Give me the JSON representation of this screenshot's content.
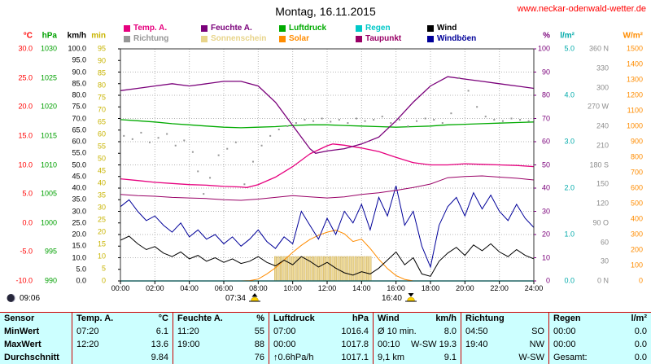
{
  "page": {
    "title": "Montag, 16.11.2015",
    "website": "www.neckar-odenwald-wetter.de"
  },
  "legend": {
    "row1": [
      {
        "label": "Temp. A.",
        "color": "#E6007E"
      },
      {
        "label": "Feuchte A.",
        "color": "#7A007A"
      },
      {
        "label": "Luftdruck",
        "color": "#00AA00"
      },
      {
        "label": "Regen",
        "color": "#00C8C8"
      },
      {
        "label": "Wind",
        "color": "#000000"
      }
    ],
    "row2": [
      {
        "label": "Richtung",
        "color": "#969696"
      },
      {
        "label": "Sonnenschein",
        "color": "#E8D48A"
      },
      {
        "label": "Solar",
        "color": "#FF8C00"
      },
      {
        "label": "Taupunkt",
        "color": "#990066"
      },
      {
        "label": "Windböen",
        "color": "#000099"
      }
    ]
  },
  "axes": {
    "left": [
      {
        "id": "temp-c",
        "unit": "°C",
        "color": "#FF0000",
        "labels": [
          "30.0",
          "25.0",
          "20.0",
          "15.0",
          "10.0",
          "5.0",
          "0.0",
          "-5.0",
          "-10.0"
        ]
      },
      {
        "id": "pressure-hpa",
        "unit": "hPa",
        "color": "#00A000",
        "labels": [
          "1030",
          "1025",
          "1020",
          "1015",
          "1010",
          "1005",
          "1000",
          "995",
          "990"
        ]
      },
      {
        "id": "wind-kmh",
        "unit": "km/h",
        "color": "#000000",
        "labels": [
          "100.0",
          "95.0",
          "90.0",
          "85.0",
          "80.0",
          "75.0",
          "70.0",
          "65.0",
          "60.0",
          "55.0",
          "50.0",
          "45.0",
          "40.0",
          "35.0",
          "30.0",
          "25.0",
          "20.0",
          "15.0",
          "10.0",
          "5.0",
          "0.0"
        ]
      },
      {
        "id": "sunshine-min",
        "unit": "min",
        "color": "#C8B400",
        "labels": [
          "95",
          "90",
          "85",
          "80",
          "75",
          "70",
          "65",
          "60",
          "55",
          "50",
          "45",
          "40",
          "35",
          "30",
          "25",
          "20",
          "15",
          "10",
          "5",
          "0"
        ]
      }
    ],
    "right": [
      {
        "id": "humidity-pct",
        "unit": "%",
        "color": "#7A007A",
        "labels": [
          "100",
          "90",
          "80",
          "70",
          "60",
          "50",
          "40",
          "30",
          "20",
          "10",
          "0"
        ]
      },
      {
        "id": "rain-lm2",
        "unit": "l/m²",
        "color": "#00AAAA",
        "labels": [
          "5.0",
          "4.0",
          "3.0",
          "2.0",
          "1.0",
          "0.0"
        ]
      },
      {
        "id": "direction-deg",
        "unit": "",
        "color": "#8C8C8C",
        "labels": [
          "360 N",
          "330",
          "300",
          "270 W",
          "240",
          "210",
          "180 S",
          "150",
          "120",
          "90 O",
          "60",
          "30",
          "0 N"
        ]
      },
      {
        "id": "solar-wm2",
        "unit": "W/m²",
        "color": "#FF8C00",
        "labels": [
          "1500",
          "1400",
          "1300",
          "1200",
          "1100",
          "1000",
          "900",
          "800",
          "700",
          "600",
          "500",
          "400",
          "300",
          "200",
          "100",
          "0"
        ]
      }
    ]
  },
  "x_axis": [
    "00:00",
    "02:00",
    "04:00",
    "06:00",
    "08:00",
    "10:00",
    "12:00",
    "14:00",
    "16:00",
    "18:00",
    "20:00",
    "22:00",
    "24:00"
  ],
  "markers": {
    "moonrise": "09:06",
    "sunrise": "07:34",
    "sunset": "16:40"
  },
  "chart_data": {
    "type": "line",
    "title": "Montag, 16.11.2015",
    "x_unit": "hour_of_day",
    "x_range": [
      0,
      24
    ],
    "axes_ranges": {
      "c": [
        -10,
        30
      ],
      "hpa": [
        990,
        1030
      ],
      "pct": [
        0,
        100
      ],
      "kmh": [
        0,
        100
      ],
      "wm2": [
        0,
        1500
      ],
      "mins": [
        0,
        95
      ],
      "deg": [
        0,
        360
      ],
      "lm2": [
        0,
        5
      ]
    },
    "series": [
      {
        "id": "regen",
        "name": "Regen",
        "unit": "l/m²",
        "axis": "lm2",
        "color": "#00C8C8",
        "width": 1.4,
        "x": [
          0,
          24
        ],
        "values": [
          0,
          0
        ]
      },
      {
        "id": "solar",
        "name": "Solar",
        "unit": "W/m²",
        "axis": "wm2",
        "color": "#FF8C00",
        "width": 1,
        "x_start": 0,
        "x_step": 0.5,
        "values": [
          0,
          0,
          0,
          0,
          0,
          0,
          0,
          0,
          0,
          0,
          0,
          0,
          0,
          0,
          0,
          2,
          12,
          45,
          85,
          135,
          185,
          230,
          268,
          295,
          315,
          328,
          305,
          255,
          270,
          210,
          140,
          80,
          35,
          10,
          0,
          0,
          0,
          0,
          0,
          0,
          0,
          0,
          0,
          0,
          0,
          0,
          0,
          0,
          0
        ]
      },
      {
        "id": "windboeen",
        "name": "Windböen",
        "unit": "km/h",
        "axis": "kmh",
        "color": "#000099",
        "width": 1,
        "x_start": 0,
        "x_step": 0.5,
        "values": [
          32,
          35,
          30,
          26,
          28,
          24,
          21,
          25,
          19,
          22,
          18,
          20,
          16,
          19,
          15,
          18,
          22,
          17,
          14,
          19,
          16,
          30,
          24,
          18,
          27,
          20,
          30,
          25,
          33,
          22,
          36,
          28,
          41,
          24,
          30,
          15,
          6,
          24,
          32,
          36,
          28,
          38,
          31,
          37,
          30,
          26,
          33,
          27,
          23
        ]
      },
      {
        "id": "wind",
        "name": "Wind",
        "unit": "km/h",
        "axis": "kmh",
        "color": "#000000",
        "width": 1,
        "x_start": 0,
        "x_step": 0.5,
        "values": [
          17.5,
          19.3,
          16,
          13.5,
          14.8,
          12,
          10.5,
          12.5,
          9.5,
          11,
          8.5,
          10,
          8,
          9.5,
          7.5,
          8.5,
          10.5,
          8,
          6.5,
          9,
          7,
          10.5,
          8.5,
          6,
          8,
          5.5,
          3.5,
          2.5,
          4,
          3,
          5.5,
          9,
          12.5,
          7,
          10,
          3,
          2,
          8.5,
          12,
          14.5,
          11,
          15.5,
          13,
          16,
          12.5,
          10.5,
          13.5,
          11,
          9.5
        ]
      },
      {
        "id": "taupunkt",
        "name": "Taupunkt",
        "unit": "°C",
        "axis": "c",
        "color": "#990066",
        "width": 1,
        "x_start": 0,
        "x_step": 1,
        "values": [
          4.9,
          4.7,
          4.6,
          4.4,
          4.3,
          4.2,
          4.0,
          3.9,
          4.1,
          4.4,
          4.7,
          4.5,
          4.3,
          4.5,
          4.9,
          5.2,
          5.6,
          6.1,
          6.7,
          7.8,
          8.0,
          8.1,
          7.9,
          7.7,
          7.4
        ]
      },
      {
        "id": "temp-a",
        "name": "Temp. A.",
        "unit": "°C",
        "axis": "c",
        "color": "#E6007E",
        "width": 1.3,
        "x": [
          0,
          1,
          2,
          3,
          4,
          5,
          6,
          7,
          7.33,
          8,
          9,
          10,
          11,
          12,
          12.33,
          13,
          14,
          15,
          16,
          17,
          18,
          19,
          20,
          21,
          22,
          23,
          24
        ],
        "values": [
          7.6,
          7.3,
          7.0,
          6.8,
          6.6,
          6.5,
          6.3,
          6.2,
          6.1,
          6.6,
          7.9,
          9.7,
          11.9,
          13.3,
          13.6,
          13.4,
          12.9,
          12.3,
          11.3,
          10.4,
          10.0,
          10.0,
          10.2,
          10.1,
          10.0,
          9.9,
          9.7
        ]
      },
      {
        "id": "luftdruck",
        "name": "Luftdruck",
        "unit": "hPa",
        "axis": "hpa",
        "color": "#00AA00",
        "width": 1.3,
        "x_start": 0,
        "x_step": 1,
        "values": [
          1017.8,
          1017.6,
          1017.4,
          1017.1,
          1016.9,
          1016.7,
          1016.5,
          1016.4,
          1016.5,
          1016.6,
          1016.8,
          1016.9,
          1016.9,
          1016.8,
          1016.7,
          1016.6,
          1016.5,
          1016.6,
          1016.7,
          1016.9,
          1017.0,
          1017.1,
          1017.2,
          1017.3,
          1017.4
        ]
      },
      {
        "id": "feuchte-a",
        "name": "Feuchte A.",
        "unit": "%",
        "axis": "pct",
        "color": "#7A007A",
        "width": 1.3,
        "x": [
          0,
          1,
          2,
          3,
          4,
          5,
          6,
          7,
          8,
          9,
          10,
          11,
          11.33,
          12,
          13,
          14,
          15,
          16,
          17,
          18,
          19,
          20,
          21,
          22,
          23,
          24
        ],
        "values": [
          82,
          83,
          84,
          85,
          84,
          85,
          86,
          86,
          84,
          77,
          67,
          57,
          55,
          56,
          57,
          59,
          62,
          69,
          77,
          84,
          88,
          87,
          86,
          85,
          84,
          83
        ]
      }
    ],
    "scatter": {
      "id": "richtung",
      "name": "Richtung",
      "unit": "Grad",
      "axis": "deg",
      "color": "#969696",
      "points": [
        [
          0.2,
          225
        ],
        [
          0.7,
          220
        ],
        [
          1.2,
          230
        ],
        [
          1.7,
          215
        ],
        [
          2.2,
          222
        ],
        [
          2.7,
          228
        ],
        [
          3.2,
          210
        ],
        [
          3.7,
          218
        ],
        [
          4.2,
          200
        ],
        [
          4.5,
          170
        ],
        [
          4.83,
          135
        ],
        [
          5.2,
          160
        ],
        [
          5.7,
          195
        ],
        [
          6.2,
          205
        ],
        [
          6.7,
          215
        ],
        [
          7.2,
          150
        ],
        [
          7.7,
          185
        ],
        [
          8.2,
          210
        ],
        [
          8.7,
          225
        ],
        [
          9.2,
          235
        ],
        [
          9.7,
          240
        ],
        [
          10.2,
          245
        ],
        [
          10.7,
          250
        ],
        [
          11.2,
          248
        ],
        [
          11.7,
          252
        ],
        [
          12.2,
          247
        ],
        [
          12.7,
          250
        ],
        [
          13.2,
          245
        ],
        [
          13.7,
          252
        ],
        [
          14.2,
          248
        ],
        [
          14.7,
          250
        ],
        [
          15.2,
          255
        ],
        [
          15.7,
          245
        ],
        [
          16.2,
          250
        ],
        [
          16.7,
          240
        ],
        [
          17.2,
          248
        ],
        [
          17.7,
          252
        ],
        [
          18.2,
          250
        ],
        [
          18.7,
          245
        ],
        [
          19.2,
          260
        ],
        [
          19.67,
          315
        ],
        [
          20.2,
          295
        ],
        [
          20.7,
          270
        ],
        [
          21.2,
          255
        ],
        [
          21.7,
          250
        ],
        [
          22.2,
          248
        ],
        [
          22.7,
          252
        ],
        [
          23.2,
          250
        ],
        [
          23.7,
          248
        ]
      ]
    },
    "bars": {
      "id": "sonnenschein",
      "name": "Sonnenschein",
      "unit": "min",
      "axis": "mins",
      "color": "#F0DC9A",
      "border": "#C8A850",
      "x_start": 9.0,
      "x_step": 0.1667,
      "values": [
        10,
        10,
        10,
        10,
        10,
        10,
        10,
        10,
        10,
        10,
        10,
        10,
        10,
        10,
        10,
        10,
        10,
        10,
        10,
        10,
        10,
        10,
        10,
        10,
        10,
        10,
        10,
        10,
        10,
        10,
        10,
        10,
        10,
        10
      ]
    }
  },
  "table": {
    "header": {
      "sensor": "Sensor",
      "groups": [
        [
          "Temp. A.",
          "°C"
        ],
        [
          "Feuchte A.",
          "%"
        ],
        [
          "Luftdruck",
          "hPa"
        ],
        [
          "Wind",
          "km/h"
        ],
        [
          "Richtung",
          ""
        ],
        [
          "Regen",
          "l/m²"
        ]
      ]
    },
    "rows": [
      {
        "name": "MinWert",
        "cells": [
          [
            "07:20",
            "6.1"
          ],
          [
            "11:20",
            "55"
          ],
          [
            "07:00",
            "1016.4"
          ],
          [
            "Ø 10 min.",
            "8.0"
          ],
          [
            "04:50",
            "SO"
          ],
          [
            "00:00",
            "0.0"
          ]
        ]
      },
      {
        "name": "MaxWert",
        "cells": [
          [
            "12:20",
            "13.6"
          ],
          [
            "19:00",
            "88"
          ],
          [
            "00:00",
            "1017.8"
          ],
          [
            "00:10",
            "W-SW 19.3"
          ],
          [
            "19:40",
            "NW"
          ],
          [
            "00:00",
            "0.0"
          ]
        ]
      },
      {
        "name": "Durchschnitt",
        "cells": [
          [
            "",
            "9.84"
          ],
          [
            "",
            "76"
          ],
          [
            "↑0.6hPa/h",
            "1017.1"
          ],
          [
            "9,1 km",
            "9.1"
          ],
          [
            "",
            "W-SW"
          ],
          [
            "Gesamt:",
            "0.0"
          ]
        ]
      }
    ]
  }
}
